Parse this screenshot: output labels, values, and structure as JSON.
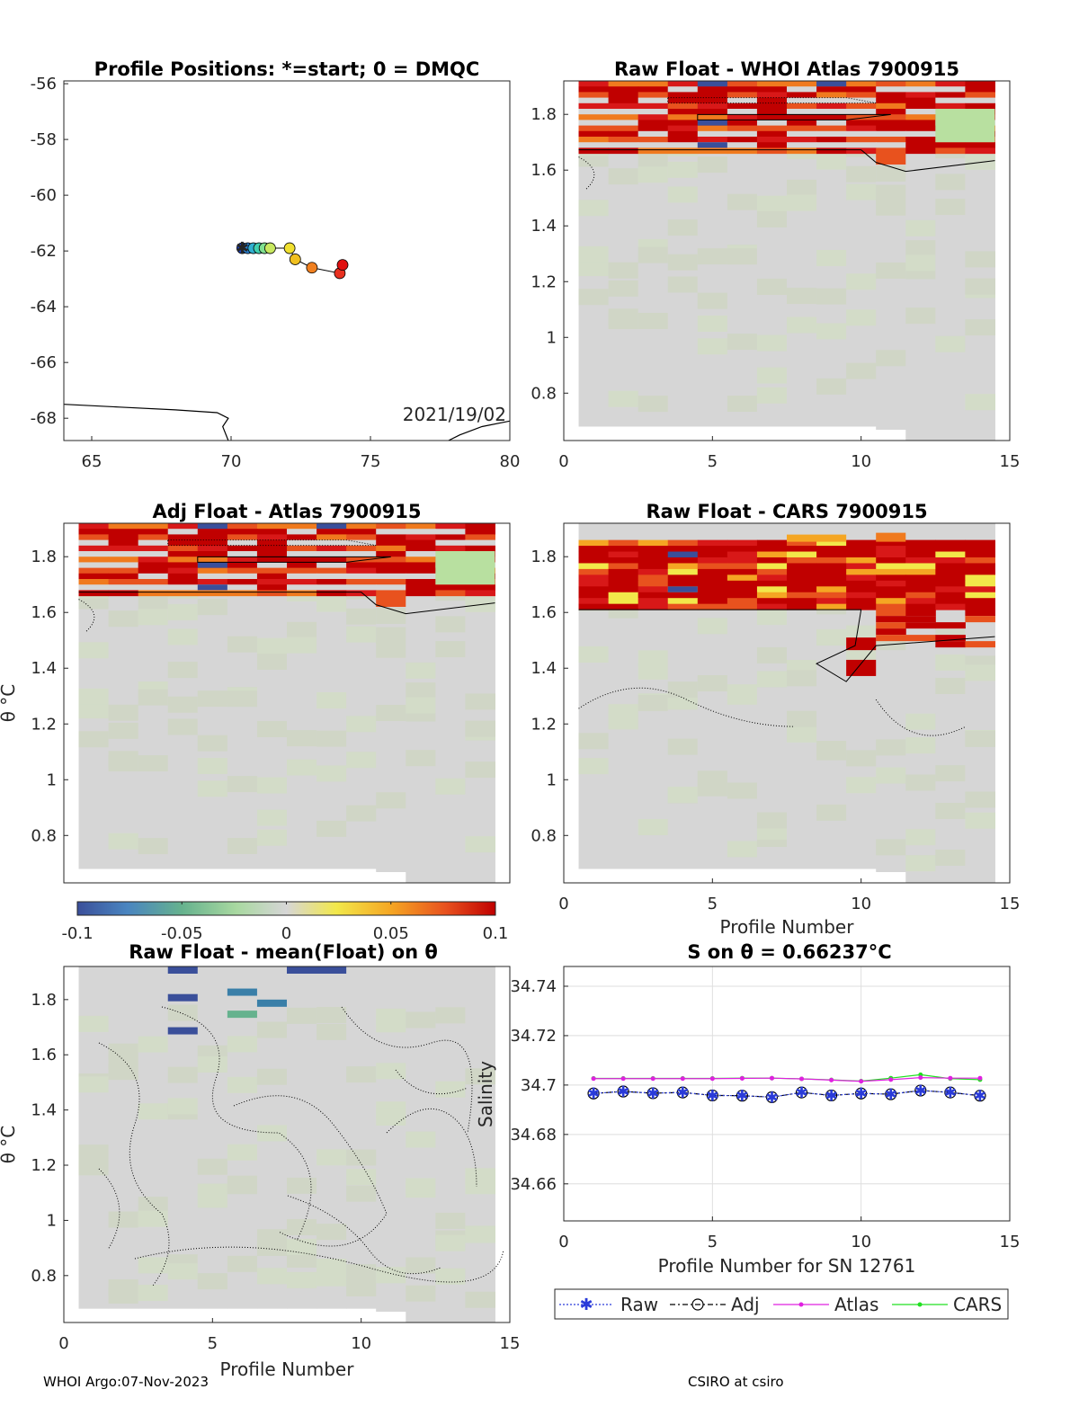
{
  "footer": {
    "left": "WHOI Argo:07-Nov-2023",
    "right": "CSIRO at csiro"
  },
  "colors": {
    "raw": "#2a3bd9",
    "adj": "#000000",
    "atlas": "#e020e0",
    "cars": "#20e020",
    "background": "#d6d6d6"
  },
  "colorbar": {
    "ticks": [
      "-0.1",
      "-0.05",
      "0",
      "0.05",
      "0.1"
    ],
    "range": [
      -0.1,
      0.1
    ],
    "colormap": [
      "#3a4f9a",
      "#4a85c0",
      "#66b28e",
      "#a8d8a0",
      "#d6d6d6",
      "#f2e84a",
      "#f5a623",
      "#e8521e",
      "#c00000"
    ]
  },
  "chart_data": [
    {
      "id": "positions",
      "type": "scatter",
      "title": "Profile Positions: *=start; 0 = DMQC",
      "xlim": [
        64,
        80
      ],
      "ylim": [
        -68.8,
        -55.9
      ],
      "xticks": [
        "65",
        "70",
        "75",
        "80"
      ],
      "yticks": [
        "-56",
        "-58",
        "-60",
        "-62",
        "-64",
        "-66",
        "-68"
      ],
      "annotation": "2021/19/02",
      "track": [
        [
          70.4,
          -61.9
        ],
        [
          70.6,
          -61.9
        ],
        [
          70.8,
          -61.9
        ],
        [
          71.0,
          -61.9
        ],
        [
          71.2,
          -61.9
        ],
        [
          71.4,
          -61.9
        ],
        [
          72.1,
          -61.9
        ],
        [
          72.3,
          -62.3
        ],
        [
          72.9,
          -62.6
        ],
        [
          73.9,
          -62.8
        ],
        [
          74.0,
          -62.5
        ]
      ],
      "track_colors": [
        "#1f3fb0",
        "#2a7fd0",
        "#30b0d0",
        "#40d0b0",
        "#80e090",
        "#c8e860",
        "#f0e030",
        "#f0c020",
        "#f08020",
        "#e83020",
        "#e01010"
      ],
      "coast": [
        [
          [
            64,
            -67.5
          ],
          [
            66,
            -67.6
          ],
          [
            68,
            -67.7
          ],
          [
            69.5,
            -67.8
          ],
          [
            69.7,
            -67.9
          ],
          [
            69.9,
            -68.0
          ],
          [
            69.7,
            -68.3
          ],
          [
            69.9,
            -68.8
          ]
        ],
        [
          [
            77.8,
            -68.8
          ],
          [
            78.2,
            -68.6
          ],
          [
            79.0,
            -68.3
          ],
          [
            80,
            -68.1
          ]
        ]
      ]
    },
    {
      "id": "raw-atlas",
      "type": "heatmap",
      "title": "Raw Float - WHOI Atlas  7900915",
      "xlim": [
        0,
        15
      ],
      "ylim": [
        0.63,
        1.92
      ],
      "xticks": [
        "0",
        "5",
        "10",
        "15"
      ],
      "yticks": [
        "0.8",
        "1",
        "1.2",
        "1.4",
        "1.6",
        "1.8"
      ],
      "xlabel": "",
      "ylabel": ""
    },
    {
      "id": "adj-atlas",
      "type": "heatmap",
      "title": "Adj Float - Atlas  7900915",
      "xlim": [
        0,
        15
      ],
      "ylim": [
        0.63,
        1.92
      ],
      "xticks": [],
      "yticks": [
        "0.8",
        "1",
        "1.2",
        "1.4",
        "1.6",
        "1.8"
      ],
      "xlabel": "",
      "ylabel": "θ °C"
    },
    {
      "id": "raw-cars",
      "type": "heatmap",
      "title": "Raw Float - CARS  7900915",
      "xlim": [
        0,
        15
      ],
      "ylim": [
        0.63,
        1.92
      ],
      "xticks": [
        "0",
        "5",
        "10",
        "15"
      ],
      "yticks": [
        "0.8",
        "1",
        "1.2",
        "1.4",
        "1.6",
        "1.8"
      ],
      "xlabel": "Profile Number",
      "ylabel": ""
    },
    {
      "id": "raw-mean",
      "type": "heatmap",
      "title": "Raw Float - mean(Float) on θ",
      "xlim": [
        0,
        15
      ],
      "ylim": [
        0.63,
        1.92
      ],
      "xticks": [
        "0",
        "5",
        "10",
        "15"
      ],
      "yticks": [
        "0.8",
        "1",
        "1.2",
        "1.4",
        "1.6",
        "1.8"
      ],
      "xlabel": "Profile Number",
      "ylabel": "θ °C"
    },
    {
      "id": "salinity",
      "type": "line",
      "title": "S on θ = 0.66237°C",
      "xlabel": "Profile Number for SN 12761",
      "ylabel": "Salinity",
      "xlim": [
        0,
        15
      ],
      "ylim": [
        34.645,
        34.748
      ],
      "xticks": [
        "0",
        "5",
        "10",
        "15"
      ],
      "yticks": [
        "34.66",
        "34.68",
        "34.7",
        "34.72",
        "34.74"
      ],
      "grid": true,
      "x": [
        1,
        2,
        3,
        4,
        5,
        6,
        7,
        8,
        9,
        10,
        11,
        12,
        13,
        14
      ],
      "series": [
        {
          "name": "Raw",
          "values": [
            34.6966,
            34.6974,
            34.6967,
            34.697,
            34.6958,
            34.6957,
            34.6951,
            34.697,
            34.6958,
            34.6966,
            34.6963,
            34.6978,
            34.697,
            34.6957
          ]
        },
        {
          "name": "Adj",
          "values": [
            34.6966,
            34.6974,
            34.6967,
            34.697,
            34.6958,
            34.6957,
            34.6951,
            34.697,
            34.6958,
            34.6966,
            34.6963,
            34.6978,
            34.697,
            34.6957
          ]
        },
        {
          "name": "Atlas",
          "values": [
            34.7026,
            34.7026,
            34.7026,
            34.7026,
            34.7026,
            34.7027,
            34.7028,
            34.7025,
            34.702,
            34.7015,
            34.7022,
            34.703,
            34.7028,
            34.7028
          ]
        },
        {
          "name": "CARS",
          "values": [
            34.7027,
            34.7027,
            34.7027,
            34.7027,
            34.7027,
            34.7028,
            34.7028,
            34.7025,
            34.7021,
            34.7016,
            34.7028,
            34.7042,
            34.7026,
            34.7022
          ]
        }
      ]
    }
  ]
}
